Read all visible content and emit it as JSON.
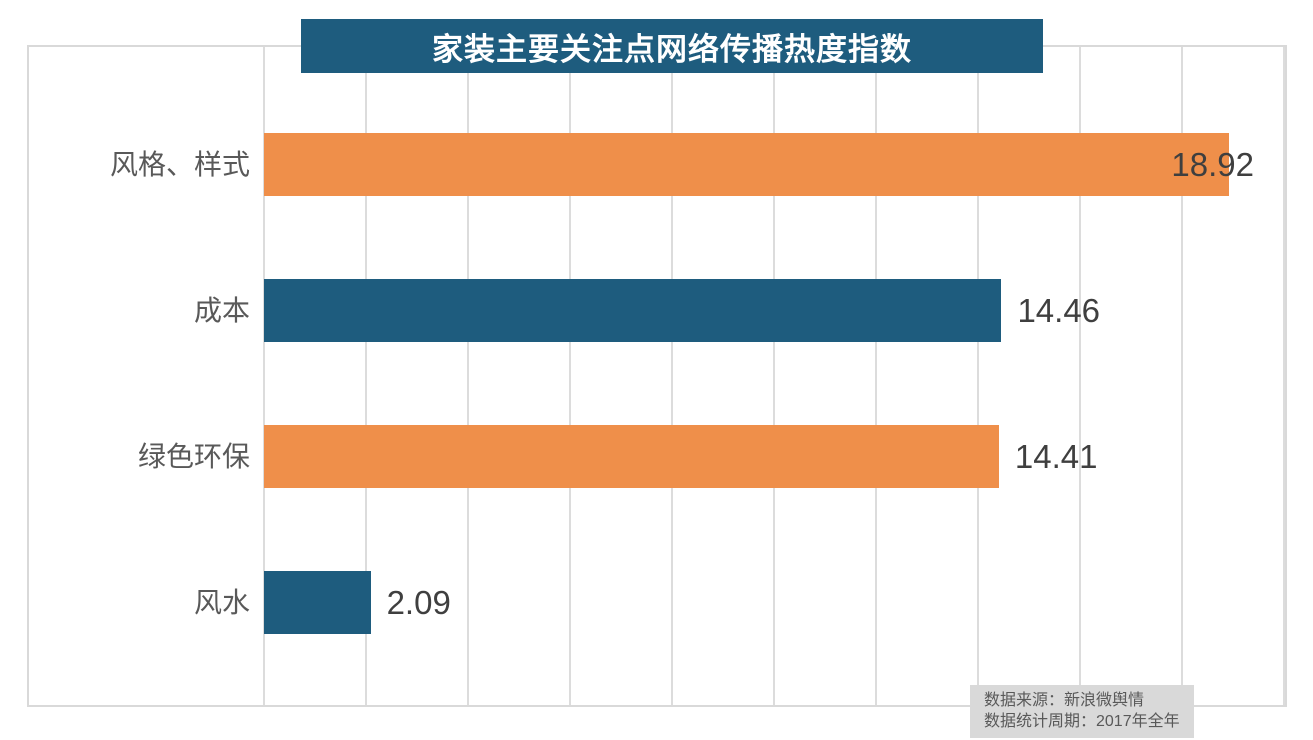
{
  "title": "家装主要关注点网络传播热度指数",
  "source": {
    "line1": "数据来源：新浪微舆情",
    "line2": "数据统计周期：2017年全年"
  },
  "colors": {
    "orange": "#ef8f4a",
    "teal": "#1e5c7e",
    "title_bg": "#1e5c7e",
    "grid": "#dcdcdc",
    "category_text": "#595959",
    "value_text": "#3f3f3f",
    "source_bg": "#d9d9d9"
  },
  "chart_data": {
    "type": "bar",
    "orientation": "horizontal",
    "title": "家装主要关注点网络传播热度指数",
    "categories": [
      "风格、样式",
      "成本",
      "绿色环保",
      "风水"
    ],
    "values": [
      18.92,
      14.46,
      14.41,
      2.09
    ],
    "value_labels": [
      "18.92",
      "14.46",
      "14.41",
      "2.09"
    ],
    "bar_colors": [
      "#ef8f4a",
      "#1e5c7e",
      "#ef8f4a",
      "#1e5c7e"
    ],
    "xlim": [
      0,
      20
    ],
    "gridline_interval": 2,
    "grid": true,
    "legend": "none",
    "source_note": [
      "数据来源：新浪微舆情",
      "数据统计周期：2017年全年"
    ]
  }
}
